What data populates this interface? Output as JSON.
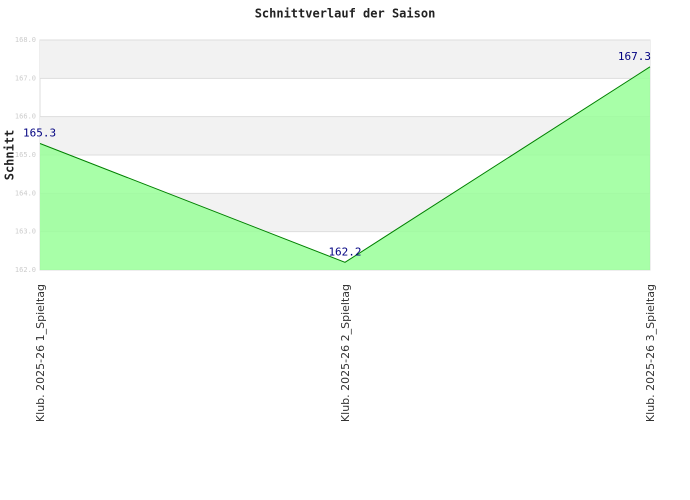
{
  "chart_data": {
    "type": "area",
    "title": "Schnittverlauf der Saison",
    "y_label": "Schnitt",
    "categories": [
      "Klub. 2025-26  1_Spieltag",
      "Klub. 2025-26  2_Spieltag",
      "Klub. 2025-26  3_Spieltag"
    ],
    "values": [
      165.3,
      162.2,
      167.3
    ],
    "color": "#008000",
    "fill": "#99ff99",
    "label_color": "#000080",
    "ylim": [
      162,
      168
    ],
    "yticks": [
      {
        "value": 162,
        "label": "162.0"
      },
      {
        "value": 163,
        "label": "163.0"
      },
      {
        "value": 164,
        "label": "164.0"
      },
      {
        "value": 165,
        "label": "165.0"
      },
      {
        "value": 166,
        "label": "166.0"
      },
      {
        "value": 167,
        "label": "167.0"
      },
      {
        "value": 168,
        "label": "168.0"
      }
    ],
    "grid": true
  }
}
